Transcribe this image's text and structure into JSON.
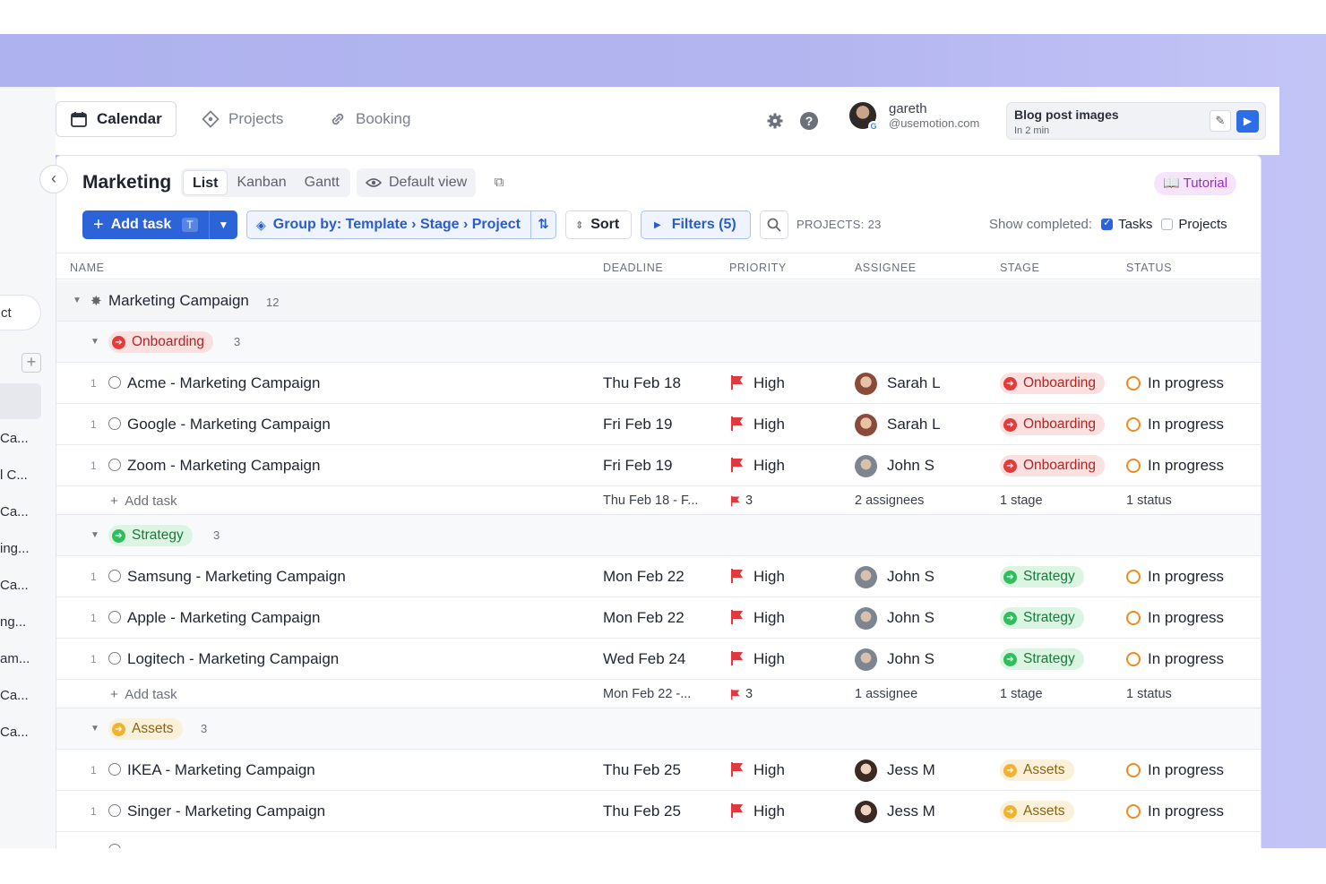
{
  "nav": {
    "tabs": [
      {
        "label": "Calendar",
        "icon": "calendar-icon"
      },
      {
        "label": "Projects",
        "icon": "projects-icon"
      },
      {
        "label": "Booking",
        "icon": "link-icon"
      }
    ],
    "user": {
      "name": "gareth",
      "email": "@usemotion.com"
    },
    "next_event": {
      "title": "Blog post images",
      "time": "In 2 min"
    }
  },
  "sidebar": {
    "pill_text": "ct",
    "items": [
      "Ca...",
      "l C...",
      "Ca...",
      "ing...",
      "Ca...",
      "ng...",
      "am...",
      "Ca...",
      "Ca..."
    ]
  },
  "view": {
    "title": "Marketing",
    "tabs": [
      "List",
      "Kanban",
      "Gantt"
    ],
    "active_tab": "List",
    "default_view": "Default view",
    "tutorial": "Tutorial"
  },
  "toolbar": {
    "add_task": "Add task",
    "add_task_shortcut": "T",
    "group_by": "Group by: Template › Stage › Project",
    "sort": "Sort",
    "filters": "Filters (5)",
    "projects_count": "PROJECTS: 23",
    "show_completed": "Show completed:",
    "tasks_label": "Tasks",
    "tasks_checked": true,
    "projects_label": "Projects",
    "projects_checked": false
  },
  "columns": [
    "NAME",
    "DEADLINE",
    "PRIORITY",
    "ASSIGNEE",
    "STAGE",
    "STATUS"
  ],
  "template_group": {
    "name": "Marketing Campaign",
    "count": "12"
  },
  "colors": {
    "onboarding": "#e33a3a",
    "strategy": "#2fbe5c",
    "assets": "#f0b232",
    "accent": "#2c63d8",
    "flag": "#e0383e",
    "status_ring": "#f08a1d"
  },
  "stages": [
    {
      "name": "Onboarding",
      "count": "3",
      "tasks": [
        {
          "num": "1",
          "name": "Acme - Marketing Campaign",
          "deadline": "Thu Feb 18",
          "priority": "High",
          "assignee": "Sarah L",
          "stage": "Onboarding",
          "status": "In progress"
        },
        {
          "num": "1",
          "name": "Google - Marketing Campaign",
          "deadline": "Fri Feb 19",
          "priority": "High",
          "assignee": "Sarah L",
          "stage": "Onboarding",
          "status": "In progress"
        },
        {
          "num": "1",
          "name": "Zoom - Marketing Campaign",
          "deadline": "Fri Feb 19",
          "priority": "High",
          "assignee": "John S",
          "stage": "Onboarding",
          "status": "In progress"
        }
      ],
      "summary": {
        "add": "Add task",
        "deadline": "Thu Feb 18 - F...",
        "priority": "3",
        "assignees": "2 assignees",
        "stages": "1 stage",
        "statuses": "1 status"
      }
    },
    {
      "name": "Strategy",
      "count": "3",
      "tasks": [
        {
          "num": "1",
          "name": "Samsung - Marketing Campaign",
          "deadline": "Mon Feb 22",
          "priority": "High",
          "assignee": "John S",
          "stage": "Strategy",
          "status": "In progress"
        },
        {
          "num": "1",
          "name": "Apple - Marketing Campaign",
          "deadline": "Mon Feb 22",
          "priority": "High",
          "assignee": "John S",
          "stage": "Strategy",
          "status": "In progress"
        },
        {
          "num": "1",
          "name": "Logitech - Marketing Campaign",
          "deadline": "Wed Feb 24",
          "priority": "High",
          "assignee": "John S",
          "stage": "Strategy",
          "status": "In progress"
        }
      ],
      "summary": {
        "add": "Add task",
        "deadline": "Mon Feb 22 -...",
        "priority": "3",
        "assignees": "1 assignee",
        "stages": "1 stage",
        "statuses": "1 status"
      }
    },
    {
      "name": "Assets",
      "count": "3",
      "tasks": [
        {
          "num": "1",
          "name": "IKEA - Marketing Campaign",
          "deadline": "Thu Feb 25",
          "priority": "High",
          "assignee": "Jess M",
          "stage": "Assets",
          "status": "In progress"
        },
        {
          "num": "1",
          "name": "Singer - Marketing Campaign",
          "deadline": "Thu Feb 25",
          "priority": "High",
          "assignee": "Jess M",
          "stage": "Assets",
          "status": "In progress"
        }
      ]
    }
  ]
}
